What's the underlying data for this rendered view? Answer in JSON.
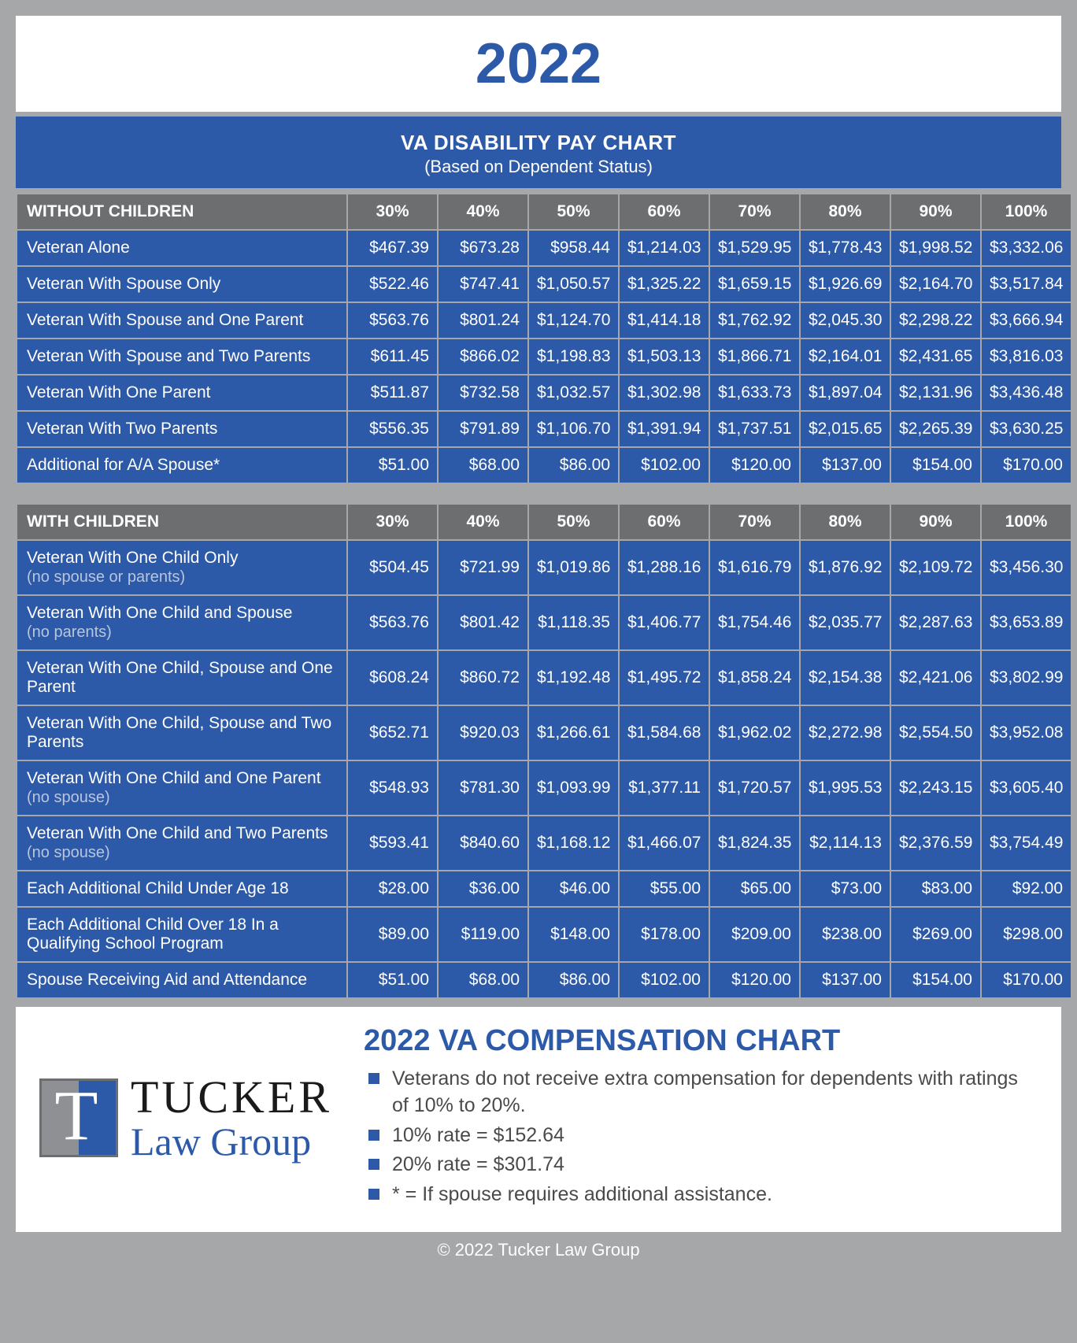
{
  "year": "2022",
  "title": "VA DISABILITY PAY CHART",
  "subtitle": "(Based on Dependent Status)",
  "columns": [
    "30%",
    "40%",
    "50%",
    "60%",
    "70%",
    "80%",
    "90%",
    "100%"
  ],
  "without": {
    "header": "WITHOUT CHILDREN",
    "rows": [
      {
        "label": "Veteran Alone",
        "sub": "",
        "vals": [
          "$467.39",
          "$673.28",
          "$958.44",
          "$1,214.03",
          "$1,529.95",
          "$1,778.43",
          "$1,998.52",
          "$3,332.06"
        ]
      },
      {
        "label": "Veteran With Spouse Only",
        "sub": "",
        "vals": [
          "$522.46",
          "$747.41",
          "$1,050.57",
          "$1,325.22",
          "$1,659.15",
          "$1,926.69",
          "$2,164.70",
          "$3,517.84"
        ]
      },
      {
        "label": "Veteran With Spouse and One Parent",
        "sub": "",
        "vals": [
          "$563.76",
          "$801.24",
          "$1,124.70",
          "$1,414.18",
          "$1,762.92",
          "$2,045.30",
          "$2,298.22",
          "$3,666.94"
        ]
      },
      {
        "label": "Veteran With Spouse and Two Parents",
        "sub": "",
        "vals": [
          "$611.45",
          "$866.02",
          "$1,198.83",
          "$1,503.13",
          "$1,866.71",
          "$2,164.01",
          "$2,431.65",
          "$3,816.03"
        ]
      },
      {
        "label": "Veteran With One Parent",
        "sub": "",
        "vals": [
          "$511.87",
          "$732.58",
          "$1,032.57",
          "$1,302.98",
          "$1,633.73",
          "$1,897.04",
          "$2,131.96",
          "$3,436.48"
        ]
      },
      {
        "label": "Veteran With Two Parents",
        "sub": "",
        "vals": [
          "$556.35",
          "$791.89",
          "$1,106.70",
          "$1,391.94",
          "$1,737.51",
          "$2,015.65",
          "$2,265.39",
          "$3,630.25"
        ]
      },
      {
        "label": "Additional for A/A Spouse*",
        "sub": "",
        "vals": [
          "$51.00",
          "$68.00",
          "$86.00",
          "$102.00",
          "$120.00",
          "$137.00",
          "$154.00",
          "$170.00"
        ]
      }
    ]
  },
  "with": {
    "header": "WITH CHILDREN",
    "rows": [
      {
        "label": "Veteran With One Child Only",
        "sub": "(no spouse or parents)",
        "vals": [
          "$504.45",
          "$721.99",
          "$1,019.86",
          "$1,288.16",
          "$1,616.79",
          "$1,876.92",
          "$2,109.72",
          "$3,456.30"
        ]
      },
      {
        "label": "Veteran With One Child and Spouse",
        "sub": "(no parents)",
        "vals": [
          "$563.76",
          "$801.42",
          "$1,118.35",
          "$1,406.77",
          "$1,754.46",
          "$2,035.77",
          "$2,287.63",
          "$3,653.89"
        ]
      },
      {
        "label": "Veteran With One Child, Spouse and One Parent",
        "sub": "",
        "vals": [
          "$608.24",
          "$860.72",
          "$1,192.48",
          "$1,495.72",
          "$1,858.24",
          "$2,154.38",
          "$2,421.06",
          "$3,802.99"
        ]
      },
      {
        "label": "Veteran With One Child, Spouse and Two Parents",
        "sub": "",
        "vals": [
          "$652.71",
          "$920.03",
          "$1,266.61",
          "$1,584.68",
          "$1,962.02",
          "$2,272.98",
          "$2,554.50",
          "$3,952.08"
        ]
      },
      {
        "label": "Veteran With One Child and One Parent ",
        "sub": "(no spouse)",
        "sameline": true,
        "vals": [
          "$548.93",
          "$781.30",
          "$1,093.99",
          "$1,377.11",
          "$1,720.57",
          "$1,995.53",
          "$2,243.15",
          "$3,605.40"
        ]
      },
      {
        "label": "Veteran With One Child and Two Parents ",
        "sub": "(no spouse)",
        "sameline": true,
        "vals": [
          "$593.41",
          "$840.60",
          "$1,168.12",
          "$1,466.07",
          "$1,824.35",
          "$2,114.13",
          "$2,376.59",
          "$3,754.49"
        ]
      },
      {
        "label": "Each Additional Child Under Age 18",
        "sub": "",
        "vals": [
          "$28.00",
          "$36.00",
          "$46.00",
          "$55.00",
          "$65.00",
          "$73.00",
          "$83.00",
          "$92.00"
        ]
      },
      {
        "label": "Each Additional Child Over 18 In a Qualifying School Program",
        "sub": "",
        "vals": [
          "$89.00",
          "$119.00",
          "$148.00",
          "$178.00",
          "$209.00",
          "$238.00",
          "$269.00",
          "$298.00"
        ]
      },
      {
        "label": "Spouse Receiving Aid and Attendance",
        "sub": "",
        "vals": [
          "$51.00",
          "$68.00",
          "$86.00",
          "$102.00",
          "$120.00",
          "$137.00",
          "$154.00",
          "$170.00"
        ]
      }
    ]
  },
  "footer": {
    "heading": "2022 VA COMPENSATION CHART",
    "bullets": [
      "Veterans do not receive extra compensation for dependents with ratings of 10% to 20%.",
      "10% rate = $152.64",
      "20% rate = $301.74",
      "* = If spouse requires additional assistance."
    ],
    "logo_top": "TUCKER",
    "logo_bottom": "Law Group",
    "logo_letter": "T"
  },
  "copyright": "© 2022 Tucker Law Group"
}
